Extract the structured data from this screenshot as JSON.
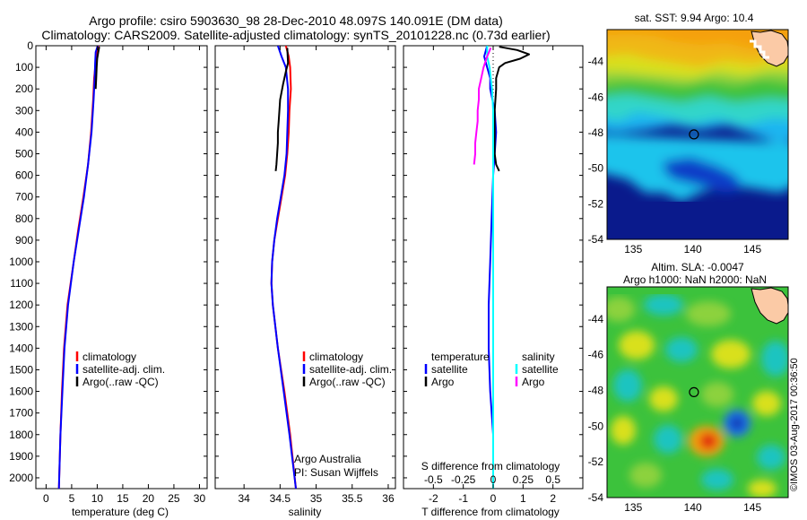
{
  "header": {
    "title_line1": "Argo profile: csiro 5903630_98 28-Dec-2010 48.097S 140.091E (DM data)",
    "title_line2": "Climatology: CARS2009. Satellite-adjusted climatology: synTS_20101228.nc (0.73d earlier)"
  },
  "credit": {
    "org": "Argo Australia",
    "pi": "PI: Susan Wijffels",
    "stamp": "©IMOS 03-Aug-2017 00:36:50"
  },
  "colors": {
    "climatology": "#ff0000",
    "satellite": "#0000ff",
    "argo": "#000000",
    "sal_satellite": "#00ffff",
    "sal_argo": "#ff00ff"
  },
  "chart_data": [
    {
      "type": "line",
      "xlabel": "temperature (deg C)",
      "ylabel": "",
      "xlim": [
        -2,
        31.5
      ],
      "ylim": [
        2050,
        0
      ],
      "xticks": [
        0,
        5,
        10,
        15,
        20,
        25,
        30
      ],
      "yticks": [
        0,
        100,
        200,
        300,
        400,
        500,
        600,
        700,
        800,
        900,
        1000,
        1100,
        1200,
        1300,
        1400,
        1500,
        1600,
        1700,
        1800,
        1900,
        2000
      ],
      "legend": [
        "climatology",
        "satellite-adj. clim.",
        "Argo(..raw -QC)"
      ],
      "legend_position": "lower-center",
      "series": [
        {
          "name": "climatology",
          "color": "#ff0000",
          "depth": [
            0,
            30,
            80,
            150,
            250,
            400,
            550,
            700,
            850,
            1000,
            1200,
            1400,
            1600,
            1800,
            2050
          ],
          "values": [
            10.3,
            9.9,
            9.7,
            9.4,
            9.2,
            8.8,
            8.2,
            7.3,
            6.3,
            5.4,
            4.2,
            3.5,
            3.1,
            2.8,
            2.5
          ]
        },
        {
          "name": "satellite-adj. clim.",
          "color": "#0000ff",
          "depth": [
            0,
            30,
            80,
            150,
            250,
            400,
            550,
            700,
            850,
            1000,
            1200,
            1400,
            1600,
            1800,
            2050
          ],
          "values": [
            10.1,
            9.7,
            9.6,
            9.5,
            9.3,
            8.9,
            8.2,
            7.4,
            6.4,
            5.4,
            4.3,
            3.6,
            3.2,
            2.8,
            2.5
          ]
        },
        {
          "name": "Argo(..raw -QC)",
          "color": "#000000",
          "depth": [
            5,
            30,
            60,
            100,
            150,
            200
          ],
          "values": [
            10.4,
            10.2,
            10.0,
            9.9,
            9.8,
            9.7
          ]
        }
      ]
    },
    {
      "type": "line",
      "xlabel": "salinity",
      "ylabel": "",
      "xlim": [
        33.6,
        36.1
      ],
      "ylim": [
        2050,
        0
      ],
      "xticks": [
        34,
        34.5,
        35,
        35.5,
        36
      ],
      "xtick_labels": [
        "34",
        "34.5",
        "35",
        "35.5",
        "36"
      ],
      "legend": [
        "climatology",
        "satellite-adj. clim.",
        "Argo(..raw -QC)"
      ],
      "legend_position": "lower-center",
      "series": [
        {
          "name": "climatology",
          "color": "#ff0000",
          "depth": [
            0,
            50,
            100,
            200,
            300,
            400,
            500,
            600,
            700,
            800,
            900,
            1000,
            1100,
            1200,
            1400,
            1600,
            1800,
            2050
          ],
          "values": [
            34.58,
            34.62,
            34.64,
            34.65,
            34.63,
            34.62,
            34.6,
            34.57,
            34.52,
            34.47,
            34.42,
            34.39,
            34.38,
            34.4,
            34.47,
            34.56,
            34.64,
            34.72
          ]
        },
        {
          "name": "satellite-adj. clim.",
          "color": "#0000ff",
          "depth": [
            0,
            50,
            100,
            200,
            300,
            400,
            500,
            600,
            700,
            800,
            900,
            1000,
            1100,
            1200,
            1400,
            1600,
            1800,
            2050
          ],
          "values": [
            34.47,
            34.52,
            34.58,
            34.61,
            34.61,
            34.6,
            34.59,
            34.56,
            34.51,
            34.46,
            34.42,
            34.39,
            34.38,
            34.4,
            34.47,
            34.55,
            34.63,
            34.72
          ]
        },
        {
          "name": "Argo(..raw -QC)",
          "color": "#000000",
          "depth": [
            10,
            80,
            120,
            180,
            250,
            300,
            350,
            400,
            450,
            500,
            550,
            580
          ],
          "values": [
            34.6,
            34.61,
            34.58,
            34.54,
            34.5,
            34.49,
            34.48,
            34.47,
            34.47,
            34.46,
            34.45,
            34.44
          ]
        }
      ]
    },
    {
      "type": "line",
      "xlabel": "T difference from climatology",
      "xlabel_top": "S difference from climatology",
      "ylabel": "",
      "xlim": [
        -3,
        3
      ],
      "ylim": [
        2050,
        0
      ],
      "xticks": [
        -2,
        -1,
        0,
        1,
        2
      ],
      "xticks_top": [
        -0.5,
        -0.25,
        0,
        0.25,
        0.5
      ],
      "xtick_labels_top": [
        "-0.5",
        "-0.25",
        "0",
        "0.25",
        "0.5"
      ],
      "legend": {
        "temperature_heading": "temperature",
        "salinity_heading": "salinity",
        "entries": [
          "satellite",
          "Argo",
          "satellite",
          "Argo"
        ]
      },
      "legend_position": "lower-center",
      "series": [
        {
          "name": "temperature satellite",
          "color": "#0000ff",
          "depth": [
            0,
            50,
            100,
            150,
            200,
            300,
            400,
            500,
            600,
            800,
            1000,
            1200,
            1400,
            1600,
            1800,
            2050
          ],
          "values": [
            -0.2,
            -0.3,
            -0.2,
            -0.1,
            -0.1,
            0.05,
            0.1,
            0.05,
            0.0,
            -0.05,
            -0.1,
            -0.15,
            -0.15,
            -0.1,
            0.0,
            0.0
          ]
        },
        {
          "name": "temperature Argo",
          "color": "#000000",
          "depth": [
            5,
            20,
            40,
            60,
            80,
            100,
            150,
            200,
            300,
            400,
            500,
            550,
            580
          ],
          "values": [
            0.2,
            0.8,
            1.2,
            0.9,
            0.4,
            0.2,
            0.1,
            0.1,
            0.05,
            0.05,
            0.05,
            0.1,
            0.2
          ]
        },
        {
          "name": "salinity satellite",
          "color": "#00ffff",
          "depth": [
            0,
            50,
            100,
            150,
            200,
            300,
            500,
            700,
            900,
            1100,
            1300,
            1500,
            1700,
            1900,
            2050
          ],
          "values": [
            -0.05,
            -0.05,
            -0.03,
            -0.02,
            -0.01,
            0.0,
            0.0,
            0.0,
            0.0,
            0.0,
            0.0,
            0.0,
            0.0,
            0.0,
            0.0
          ]
        },
        {
          "name": "salinity Argo",
          "color": "#ff00ff",
          "depth": [
            10,
            50,
            100,
            150,
            200,
            250,
            300,
            350,
            400,
            450,
            500,
            550
          ],
          "values": [
            -0.02,
            -0.05,
            -0.08,
            -0.1,
            -0.12,
            -0.12,
            -0.13,
            -0.13,
            -0.14,
            -0.15,
            -0.15,
            -0.16
          ]
        }
      ]
    },
    {
      "type": "heatmap",
      "title": "sat. SST: 9.94  Argo: 10.4",
      "xlim": [
        132.8,
        148
      ],
      "ylim": [
        -54,
        -42.2
      ],
      "xticks": [
        135,
        140,
        145
      ],
      "yticks": [
        -44,
        -46,
        -48,
        -50,
        -52,
        -54
      ],
      "marker": {
        "lon": 140.091,
        "lat": -48.097
      }
    },
    {
      "type": "heatmap",
      "title": "Altim. SLA: -0.0047",
      "subtitle": "Argo h1000: NaN h2000: NaN",
      "xlim": [
        132.8,
        148
      ],
      "ylim": [
        -54,
        -42.2
      ],
      "xticks": [
        135,
        140,
        145
      ],
      "yticks": [
        -44,
        -46,
        -48,
        -50,
        -52,
        -54
      ],
      "marker": {
        "lon": 140.091,
        "lat": -48.097
      }
    }
  ]
}
